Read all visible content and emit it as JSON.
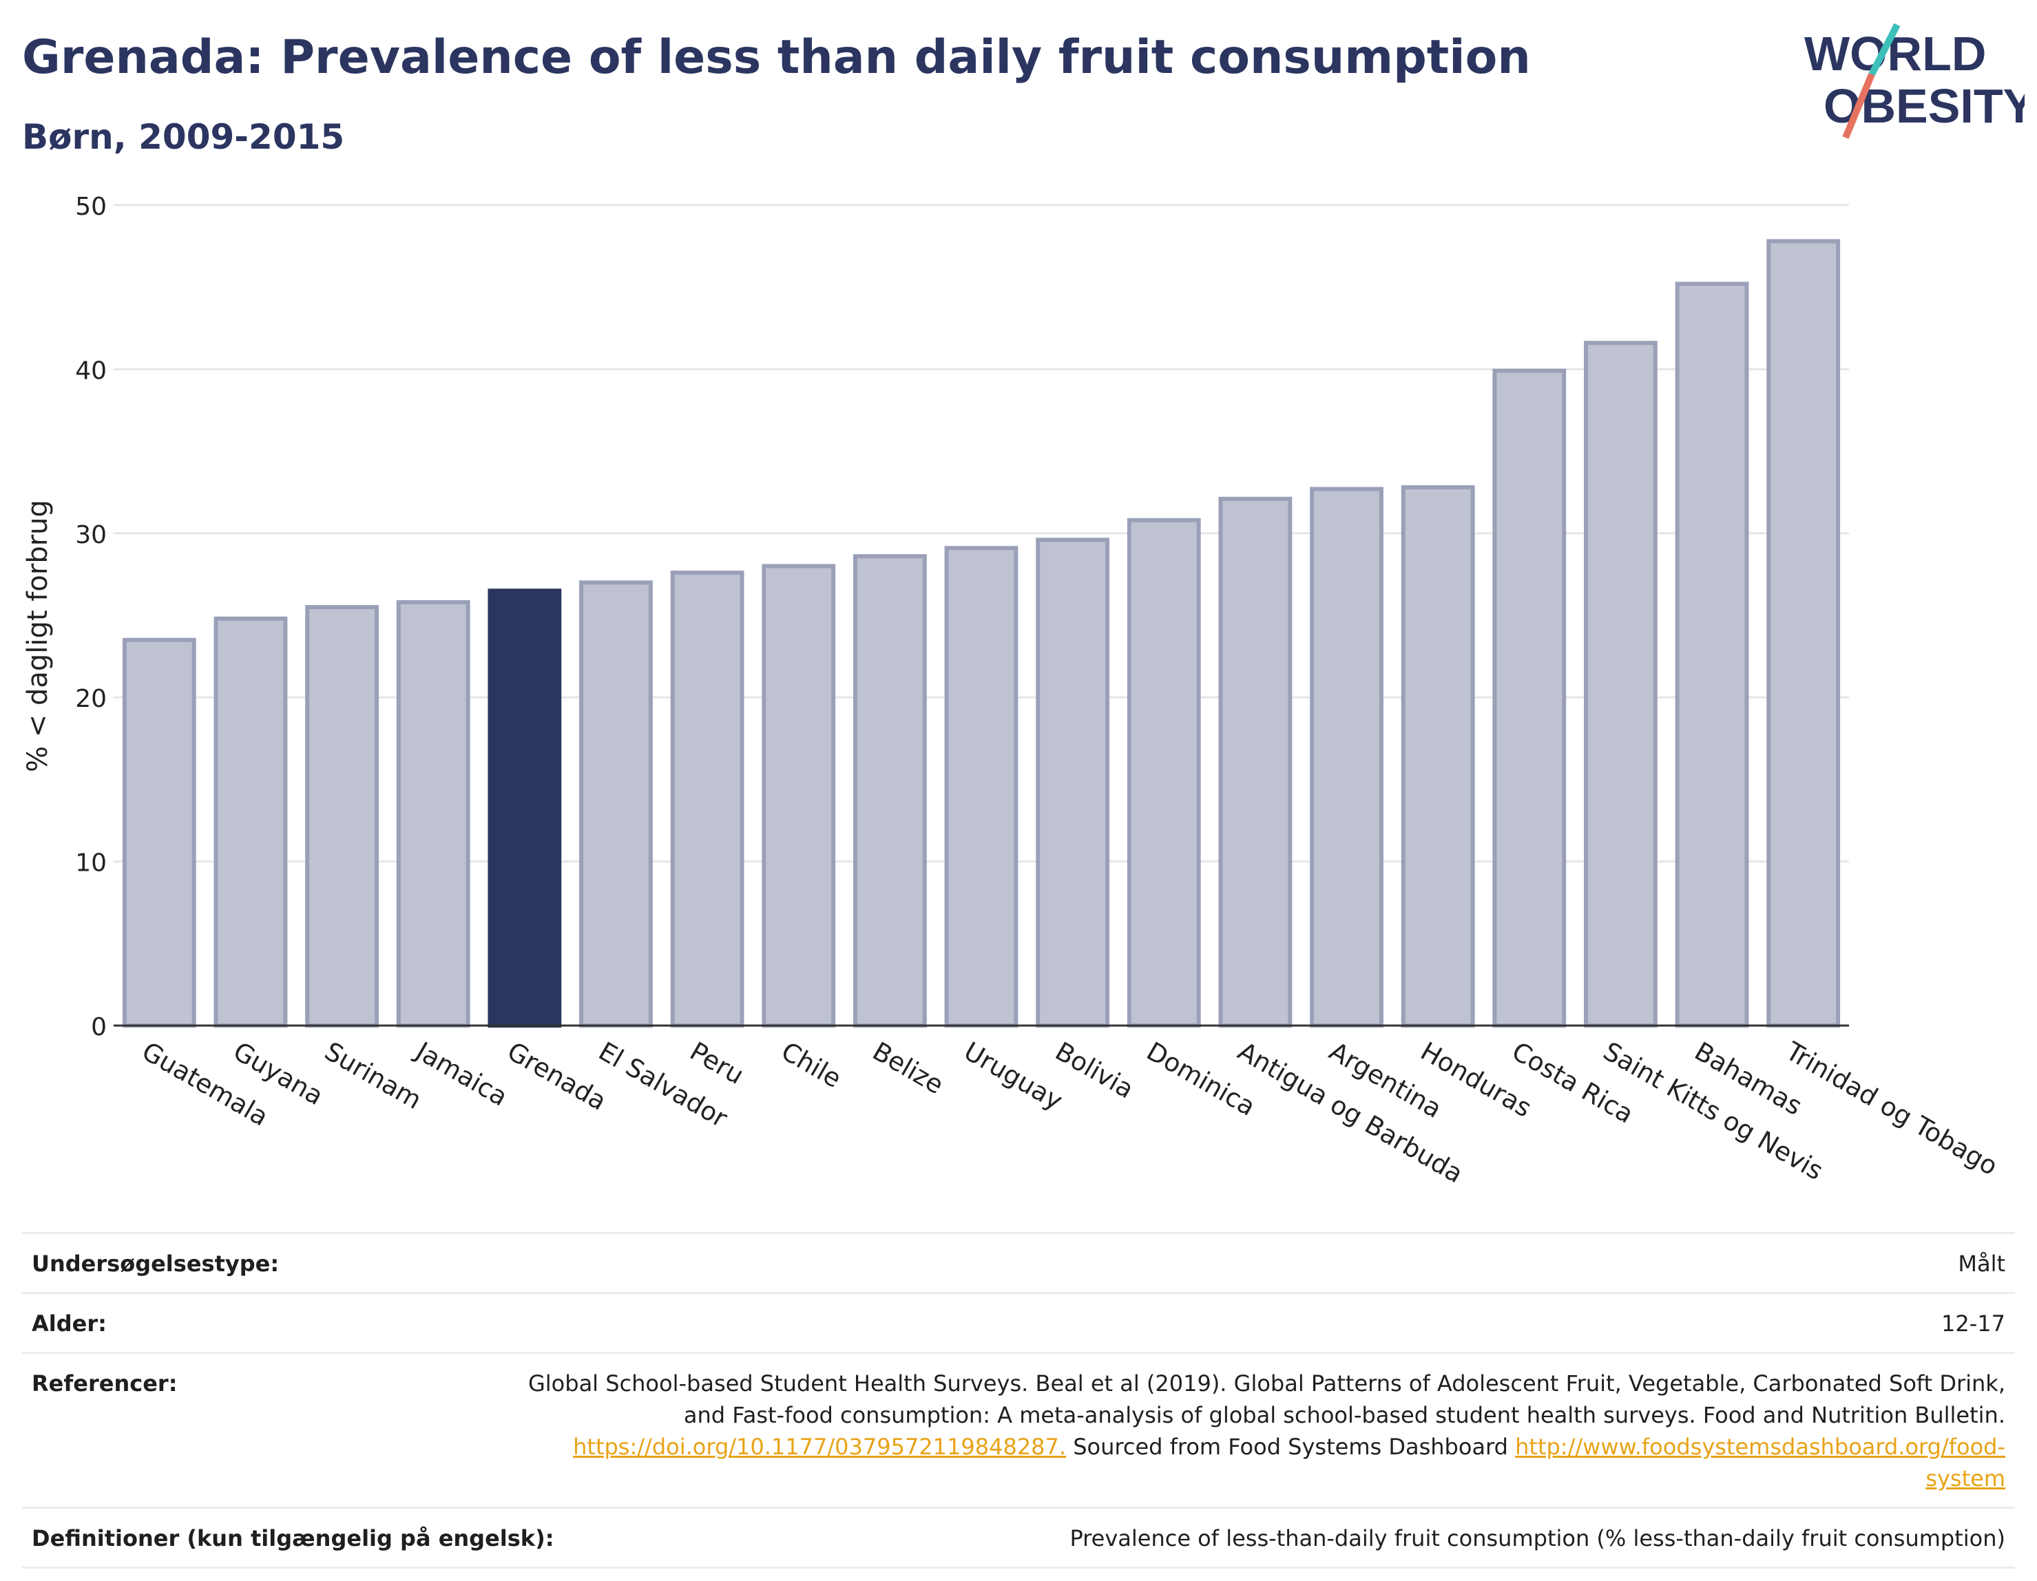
{
  "header": {
    "title": "Grenada: Prevalence of less than daily fruit consumption",
    "subtitle": "Børn, 2009-2015"
  },
  "logo": {
    "line1": "WORLD",
    "line2": "OBESITY"
  },
  "colors": {
    "highlight": "#2b3560",
    "bar_fill": "#bfc3d1",
    "bar_stroke": "#9aa0b8",
    "grid": "#e6e6e6",
    "link": "#e8a317",
    "logo_teal": "#3cc0b9",
    "logo_coral": "#e5735f"
  },
  "chart_data": {
    "type": "bar",
    "title": "Grenada: Prevalence of less than daily fruit consumption",
    "subtitle": "Børn, 2009-2015",
    "xlabel": "",
    "ylabel": "% < dagligt forbrug",
    "ylim": [
      0,
      50
    ],
    "yticks": [
      0,
      10,
      20,
      30,
      40,
      50
    ],
    "grid": true,
    "highlight": "Grenada",
    "categories": [
      "Guatemala",
      "Guyana",
      "Surinam",
      "Jamaica",
      "Grenada",
      "El Salvador",
      "Peru",
      "Chile",
      "Belize",
      "Uruguay",
      "Bolivia",
      "Dominica",
      "Antigua og Barbuda",
      "Argentina",
      "Honduras",
      "Costa Rica",
      "Saint Kitts og Nevis",
      "Bahamas",
      "Trinidad og Tobago"
    ],
    "values": [
      23.5,
      24.8,
      25.5,
      25.8,
      26.5,
      27.0,
      27.6,
      28.0,
      28.6,
      29.1,
      29.6,
      30.8,
      32.1,
      32.7,
      32.8,
      39.9,
      41.6,
      45.2,
      47.8
    ]
  },
  "meta": [
    {
      "key": "Undersøgelsestype:",
      "value": "Målt"
    },
    {
      "key": "Alder:",
      "value": "12-17"
    },
    {
      "key": "Referencer:",
      "text1": "Global School-based Student Health Surveys. Beal et al (2019). Global Patterns of Adolescent Fruit, Vegetable, Carbonated Soft Drink, and Fast-food consumption: A meta-analysis of global school-based student health surveys. Food and Nutrition Bulletin.",
      "link1": "https://doi.org/10.1177/0379572119848287.",
      "text2": "Sourced from Food Systems Dashboard",
      "link2": "http://www.foodsystemsdashboard.org/food-system"
    },
    {
      "key": "Definitioner (kun tilgængelig på engelsk):",
      "value": "Prevalence of less-than-daily fruit consumption (% less-than-daily fruit consumption)"
    }
  ]
}
